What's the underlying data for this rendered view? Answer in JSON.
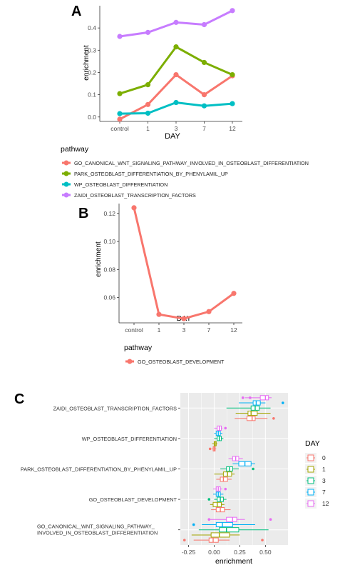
{
  "panel_labels": [
    "A",
    "B",
    "C"
  ],
  "colors": {
    "panel_bg": "#ebebeb",
    "grid": "#ffffff",
    "red": "#f8766d",
    "green": "#7cae00",
    "teal": "#00bfc4",
    "purple": "#c77cff",
    "olive": "#a3a500",
    "sea": "#00bf7d",
    "blue": "#00b0f6",
    "pink": "#e76bf3"
  },
  "chart_data": [
    {
      "panel": "A",
      "type": "line",
      "xlabel": "DAY",
      "ylabel": "enrichment",
      "categories": [
        "control",
        "1",
        "3",
        "7",
        "12"
      ],
      "ylim": [
        -0.02,
        0.5
      ],
      "yticks": [
        "0.0",
        "0.1",
        "0.2",
        "0.3",
        "0.4"
      ],
      "grid": false,
      "legend_title": "pathway",
      "legend_position": "bottom",
      "series": [
        {
          "name": "GO_CANONICAL_WNT_SIGNALING_PATHWAY_INVOLVED_IN_OSTEOBLAST_DIFFERENTIATION",
          "color": "#f8766d",
          "values": [
            -0.01,
            0.056,
            0.19,
            0.1,
            0.185
          ]
        },
        {
          "name": "PARK_OSTEOBLAST_DIFFERENTIATION_BY_PHENYLAMIL_UP",
          "color": "#7cae00",
          "values": [
            0.105,
            0.145,
            0.315,
            0.245,
            0.19
          ]
        },
        {
          "name": "WP_OSTEOBLAST_DIFFERENTIATION",
          "color": "#00bfc4",
          "values": [
            0.015,
            0.017,
            0.065,
            0.05,
            0.06
          ]
        },
        {
          "name": "ZAIDI_OSTEOBLAST_TRANSCRIPTION_FACTORS",
          "color": "#c77cff",
          "values": [
            0.362,
            0.38,
            0.425,
            0.415,
            0.478
          ]
        }
      ]
    },
    {
      "panel": "B",
      "type": "line",
      "xlabel": "DAY",
      "ylabel": "enrichment",
      "categories": [
        "control",
        "1",
        "3",
        "7",
        "12"
      ],
      "ylim": [
        0.042,
        0.127
      ],
      "yticks": [
        "0.06",
        "0.08",
        "0.10",
        "0.12"
      ],
      "grid": false,
      "legend_title": "pathway",
      "legend_position": "bottom",
      "series": [
        {
          "name": "GO_OSTEOBLAST_DEVELOPMENT",
          "color": "#f8766d",
          "values": [
            0.124,
            0.048,
            0.045,
            0.05,
            0.063
          ]
        }
      ]
    },
    {
      "panel": "C",
      "type": "boxplot",
      "xlabel": "enrichment",
      "categories": [
        "ZAIDI_OSTEOBLAST_TRANSCRIPTION_FACTORS",
        "WP_OSTEOBLAST_DIFFERENTIATION",
        "PARK_OSTEOBLAST_DIFFERENTIATION_BY_PHENYLAMIL_UP",
        "GO_OSTEOBLAST_DEVELOPMENT",
        "GO_CANONICAL_WNT_SIGNALING_PATHWAY_ INVOLVED_IN_OSTEOBLAST_DIFFERENTIATION"
      ],
      "xlim": [
        -0.33,
        0.72
      ],
      "xticks": [
        "-0.25",
        "0.00",
        "0.25",
        "0.50"
      ],
      "tick_values": [
        -0.25,
        0,
        0.25,
        0.5
      ],
      "grid": true,
      "legend_title": "DAY",
      "legend_position": "right",
      "groups": [
        {
          "name": "0",
          "color": "#f8766d"
        },
        {
          "name": "1",
          "color": "#a3a500"
        },
        {
          "name": "3",
          "color": "#00bf7d"
        },
        {
          "name": "7",
          "color": "#00b0f6"
        },
        {
          "name": "12",
          "color": "#e76bf3"
        }
      ],
      "boxes": [
        [
          {
            "min": 0.2,
            "q1": 0.32,
            "median": 0.37,
            "q3": 0.4,
            "max": 0.52,
            "outliers": [
              0.58
            ]
          },
          {
            "min": 0.21,
            "q1": 0.33,
            "median": 0.36,
            "q3": 0.42,
            "max": 0.55,
            "outliers": []
          },
          {
            "min": 0.12,
            "q1": 0.36,
            "median": 0.4,
            "q3": 0.44,
            "max": 0.55,
            "outliers": []
          },
          {
            "min": 0.24,
            "q1": 0.38,
            "median": 0.41,
            "q3": 0.45,
            "max": 0.5,
            "outliers": [
              0.67
            ]
          },
          {
            "min": 0.3,
            "q1": 0.45,
            "median": 0.5,
            "q3": 0.53,
            "max": 0.56,
            "outliers": [
              0.28,
              0.35
            ]
          }
        ],
        [
          {
            "min": -0.02,
            "q1": -0.01,
            "median": 0.0,
            "q3": 0.01,
            "max": 0.02,
            "outliers": [
              -0.04
            ]
          },
          {
            "min": -0.02,
            "q1": 0.0,
            "median": 0.01,
            "q3": 0.02,
            "max": 0.03,
            "outliers": []
          },
          {
            "min": 0.0,
            "q1": 0.03,
            "median": 0.05,
            "q3": 0.07,
            "max": 0.09,
            "outliers": []
          },
          {
            "min": 0.0,
            "q1": 0.02,
            "median": 0.04,
            "q3": 0.06,
            "max": 0.08,
            "outliers": []
          },
          {
            "min": 0.0,
            "q1": 0.03,
            "median": 0.05,
            "q3": 0.07,
            "max": 0.08,
            "outliers": [
              0.11
            ]
          }
        ],
        [
          {
            "min": 0.02,
            "q1": 0.06,
            "median": 0.09,
            "q3": 0.13,
            "max": 0.17,
            "outliers": []
          },
          {
            "min": 0.0,
            "q1": 0.09,
            "median": 0.13,
            "q3": 0.17,
            "max": 0.2,
            "outliers": []
          },
          {
            "min": 0.06,
            "q1": 0.12,
            "median": 0.15,
            "q3": 0.18,
            "max": 0.24,
            "outliers": [
              0.38
            ]
          },
          {
            "min": 0.18,
            "q1": 0.24,
            "median": 0.3,
            "q3": 0.36,
            "max": 0.4,
            "outliers": []
          },
          {
            "min": 0.14,
            "q1": 0.18,
            "median": 0.21,
            "q3": 0.24,
            "max": 0.28,
            "outliers": []
          }
        ],
        [
          {
            "min": -0.03,
            "q1": 0.02,
            "median": 0.06,
            "q3": 0.1,
            "max": 0.16,
            "outliers": []
          },
          {
            "min": -0.04,
            "q1": -0.01,
            "median": 0.03,
            "q3": 0.07,
            "max": 0.1,
            "outliers": []
          },
          {
            "min": 0.0,
            "q1": 0.03,
            "median": 0.06,
            "q3": 0.09,
            "max": 0.12,
            "outliers": [
              -0.05
            ]
          },
          {
            "min": -0.01,
            "q1": 0.02,
            "median": 0.04,
            "q3": 0.06,
            "max": 0.09,
            "outliers": []
          },
          {
            "min": -0.01,
            "q1": 0.02,
            "median": 0.04,
            "q3": 0.06,
            "max": 0.08,
            "outliers": [
              0.11
            ]
          }
        ],
        [
          {
            "min": -0.2,
            "q1": -0.05,
            "median": -0.01,
            "q3": 0.04,
            "max": 0.15,
            "outliers": [
              -0.29,
              0.47
            ]
          },
          {
            "min": -0.22,
            "q1": -0.03,
            "median": 0.05,
            "q3": 0.15,
            "max": 0.25,
            "outliers": []
          },
          {
            "min": -0.15,
            "q1": 0.05,
            "median": 0.12,
            "q3": 0.24,
            "max": 0.53,
            "outliers": []
          },
          {
            "min": -0.12,
            "q1": 0.02,
            "median": 0.08,
            "q3": 0.18,
            "max": 0.4,
            "outliers": [
              -0.2
            ]
          },
          {
            "min": -0.05,
            "q1": 0.12,
            "median": 0.18,
            "q3": 0.22,
            "max": 0.3,
            "outliers": [
              -0.05,
              0.55
            ]
          }
        ]
      ]
    }
  ]
}
